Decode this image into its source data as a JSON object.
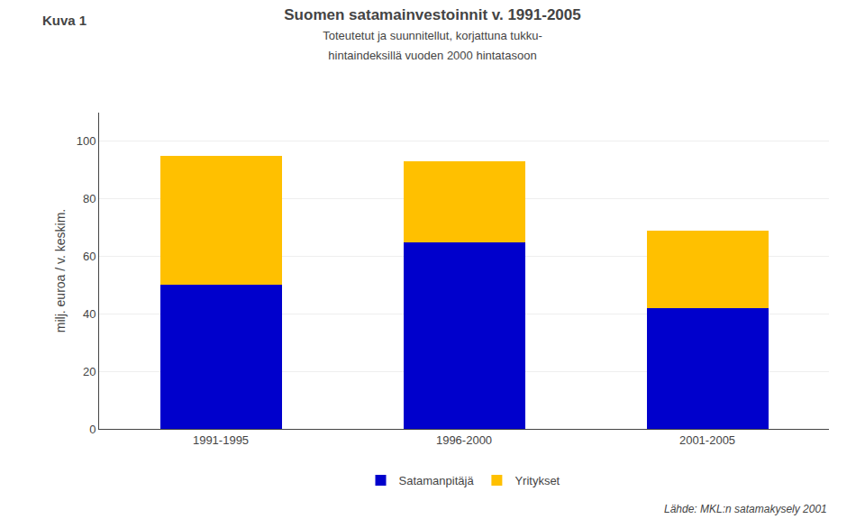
{
  "chart_data": {
    "type": "bar",
    "stacked": true,
    "title": "Suomen satamainvestoinnit v. 1991-2005",
    "subtitle": "Toteutetut ja suunnitellut, korjattuna tukku-\nhintaindeksillä vuoden 2000 hintatasoon",
    "annotations": [
      "Kuva 1",
      "Lähde: MKL:n satamakysely 2001"
    ],
    "categories": [
      "1991-1995",
      "1996-2000",
      "2001-2005"
    ],
    "series": [
      {
        "name": "Satamanpitäjä",
        "color": "#0000CC",
        "values": [
          50,
          65,
          42
        ]
      },
      {
        "name": "Yritykset",
        "color": "#FFC000",
        "values": [
          45,
          28,
          27
        ]
      }
    ],
    "ylabel": "milj. euroa / v. keskim.",
    "ylim": [
      0,
      110
    ],
    "yticks": [
      0,
      20,
      40,
      60,
      80,
      100
    ],
    "grid": true,
    "legend": "bottom"
  }
}
